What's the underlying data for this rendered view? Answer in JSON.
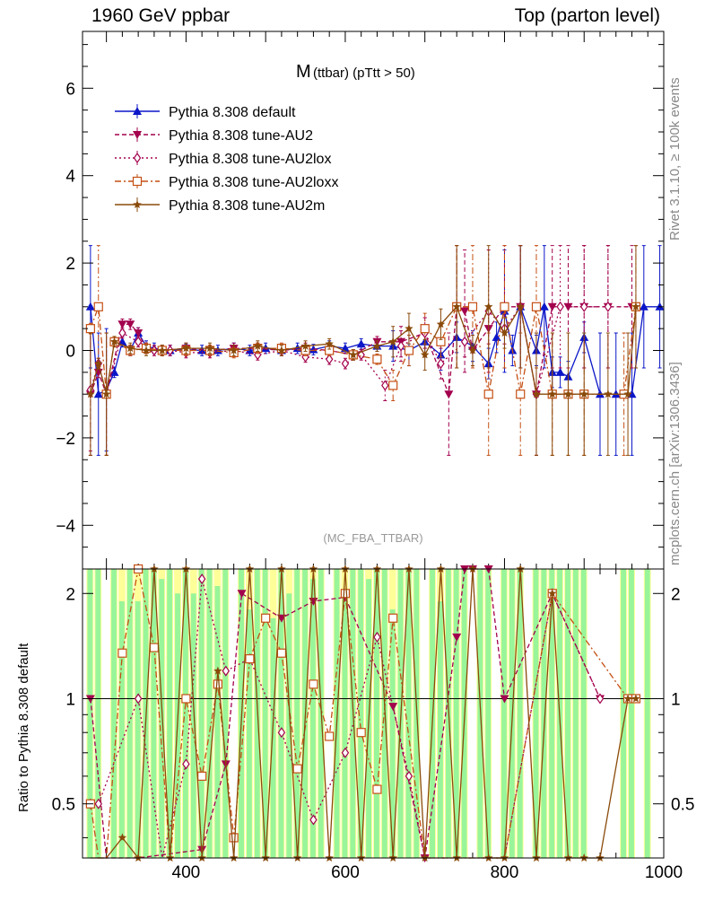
{
  "header": {
    "left": "1960 GeV ppbar",
    "right": "Top (parton level)"
  },
  "side_labels": {
    "rivet": "Rivet 3.1.10, ≥ 100k events",
    "mcplots": "mcplots.cern.ch [arXiv:1306.3436]"
  },
  "analysis_label": "(MC_FBA_TTBAR)",
  "chart_data": {
    "type": "line",
    "title_main": "M",
    "title_sub": "(ttbar) (pTtt > 50)",
    "xlabel": "",
    "ylabel_ratio": "Ratio to Pythia 8.308 default",
    "xlim": [
      270,
      1000
    ],
    "ylim_main": [
      -5.0,
      7.3
    ],
    "ylim_ratio": [
      0.35,
      2.35
    ],
    "x_ticks": [
      400,
      600,
      800,
      1000
    ],
    "y_ticks_main": [
      -4,
      -2,
      0,
      2,
      4,
      6
    ],
    "y_ticks_ratio": [
      0.5,
      1,
      2
    ],
    "series": [
      {
        "name": "Pythia 8.308 default",
        "color": "#0b16c8",
        "marker": "triangle-up",
        "dash": "",
        "x": [
          280,
          290,
          300,
          310,
          320,
          330,
          340,
          350,
          360,
          380,
          400,
          420,
          440,
          460,
          480,
          500,
          520,
          540,
          560,
          580,
          600,
          620,
          640,
          660,
          680,
          700,
          720,
          740,
          760,
          780,
          790,
          800,
          810,
          820,
          840,
          850,
          860,
          870,
          880,
          900,
          920,
          940,
          960,
          975,
          995
        ],
        "y": [
          1.0,
          -1.0,
          -0.9,
          -0.5,
          0.2,
          0.0,
          0.4,
          0.1,
          0.05,
          0.0,
          0.02,
          0.0,
          0.0,
          0.05,
          0.0,
          0.05,
          0.0,
          0.05,
          0.02,
          0.1,
          0.05,
          0.15,
          0.1,
          0.1,
          0.0,
          0.2,
          -0.1,
          0.3,
          0.1,
          -0.3,
          0.3,
          0.9,
          0.0,
          1.0,
          0.0,
          1.0,
          -0.5,
          -0.5,
          -0.6,
          0.3,
          -1.0,
          -1.0,
          -1.0,
          1.0,
          1.0
        ]
      },
      {
        "name": "Pythia 8.308 tune-AU2",
        "color": "#a3004d",
        "marker": "triangle-down",
        "dash": "5,3",
        "x": [
          280,
          290,
          300,
          320,
          330,
          340,
          350,
          370,
          400,
          430,
          460,
          490,
          520,
          550,
          580,
          610,
          640,
          670,
          700,
          730,
          740,
          750,
          760,
          780,
          800,
          820,
          840,
          860,
          880,
          900,
          930,
          960
        ],
        "y": [
          -1.0,
          -0.5,
          -1.0,
          0.6,
          0.6,
          0.4,
          0.05,
          0.0,
          0.05,
          0.0,
          0.05,
          0.05,
          0.0,
          0.05,
          0.0,
          -0.1,
          0.2,
          0.2,
          0.4,
          -1.0,
          1.0,
          0.9,
          0.0,
          0.5,
          1.0,
          1.0,
          -1.0,
          1.0,
          1.0,
          1.0,
          1.0,
          1.0
        ]
      },
      {
        "name": "Pythia 8.308 tune-AU2lox",
        "color": "#a3004d",
        "marker": "diamond-open",
        "dash": "2,3",
        "x": [
          280,
          290,
          300,
          320,
          340,
          360,
          380,
          400,
          430,
          460,
          490,
          520,
          550,
          580,
          600,
          620,
          650,
          670,
          700,
          720,
          750,
          780,
          800,
          820,
          840,
          870,
          900,
          930
        ],
        "y": [
          -0.9,
          -0.3,
          -1.0,
          0.4,
          0.2,
          0.0,
          0.0,
          -0.05,
          -0.05,
          0.0,
          -0.1,
          0.0,
          -0.15,
          -0.2,
          -0.3,
          -0.1,
          -0.8,
          0.1,
          0.4,
          -0.3,
          0.2,
          0.9,
          0.5,
          1.0,
          -1.0,
          1.0,
          1.0,
          1.0
        ]
      },
      {
        "name": "Pythia 8.308 tune-AU2loxx",
        "color": "#c44f13",
        "marker": "square-open",
        "dash": "7,3,2,3",
        "x": [
          280,
          290,
          300,
          310,
          330,
          350,
          370,
          400,
          430,
          460,
          490,
          520,
          550,
          580,
          610,
          640,
          660,
          680,
          700,
          720,
          740,
          760,
          780,
          800,
          820,
          840,
          860,
          880,
          900,
          950,
          965
        ],
        "y": [
          0.5,
          1.0,
          -1.0,
          0.2,
          0.0,
          0.05,
          0.0,
          0.0,
          0.0,
          -0.05,
          0.05,
          0.05,
          0.0,
          0.0,
          -0.1,
          -0.2,
          -0.8,
          0.0,
          0.5,
          0.2,
          1.0,
          1.0,
          -1.0,
          1.0,
          -1.0,
          1.0,
          -1.0,
          -1.0,
          -1.0,
          -1.0,
          1.0
        ]
      },
      {
        "name": "Pythia 8.308 tune-AU2m",
        "color": "#8a4a0a",
        "marker": "star",
        "dash": "",
        "x": [
          280,
          290,
          300,
          310,
          330,
          350,
          370,
          400,
          430,
          460,
          490,
          520,
          550,
          580,
          610,
          640,
          660,
          680,
          700,
          720,
          740,
          760,
          780,
          800,
          820,
          840,
          860,
          880,
          900,
          930,
          955,
          965
        ],
        "y": [
          -1.0,
          -0.3,
          -1.0,
          0.2,
          0.05,
          0.0,
          0.0,
          0.05,
          0.05,
          0.0,
          0.1,
          0.0,
          0.1,
          0.15,
          -0.1,
          0.1,
          0.2,
          0.5,
          -0.1,
          0.6,
          1.0,
          0.0,
          1.0,
          0.4,
          1.0,
          -1.0,
          -1.0,
          -1.0,
          -1.0,
          -1.0,
          -1.0,
          1.0
        ]
      }
    ],
    "ratio": {
      "reference_line": 1,
      "band_x": [
        280,
        290,
        300,
        310,
        320,
        330,
        340,
        350,
        360,
        370,
        380,
        390,
        400,
        410,
        420,
        430,
        440,
        450,
        460,
        470,
        480,
        490,
        500,
        510,
        520,
        530,
        540,
        550,
        560,
        570,
        580,
        590,
        600,
        610,
        620,
        630,
        640,
        650,
        660,
        670,
        680,
        690,
        700,
        710,
        720,
        730,
        740,
        750,
        760,
        770,
        780,
        790,
        800,
        810,
        820,
        830,
        840,
        850,
        860,
        870,
        880,
        890,
        900,
        910,
        920,
        930,
        940,
        950,
        960,
        970,
        980,
        990
      ],
      "band_green_lo": [
        0.35,
        0.35,
        0.35,
        0.35,
        0.35,
        0.35,
        0.35,
        0.35,
        0.35,
        0.35,
        0.35,
        0.35,
        0.35,
        0.35,
        0.35,
        0.35,
        0.35,
        0.35,
        0.35,
        0.35,
        0.35,
        0.35,
        0.35,
        0.35,
        0.35,
        0.35,
        0.35,
        0.35,
        0.35,
        0.35,
        0.35,
        0.35,
        0.35,
        0.35,
        0.35,
        0.35,
        0.35,
        0.35,
        0.35,
        0.35,
        0.35,
        0.35,
        0.35,
        0.35,
        0.35,
        0.35,
        0.35,
        0.35,
        0.35,
        0.35,
        0.35,
        0.35,
        0.35,
        0.35,
        0.35,
        0.35,
        0.35,
        0.35,
        0.35,
        0.35,
        0.35,
        0.35,
        0.35,
        0.35,
        0.35,
        0.35,
        0.35,
        0.35,
        0.35,
        0.35,
        0.35,
        0.35
      ],
      "band_green_hi": [
        2.35,
        2.35,
        0,
        2.35,
        1.9,
        2.35,
        1.9,
        2.35,
        2.35,
        2.2,
        2.35,
        2.0,
        2.35,
        2.0,
        2.35,
        2.35,
        2.1,
        2.35,
        0,
        2.35,
        1.8,
        2.35,
        2.35,
        1.7,
        2.35,
        2.0,
        2.35,
        2.35,
        2.2,
        2.35,
        0,
        2.35,
        2.0,
        2.35,
        2.35,
        2.2,
        2.35,
        2.35,
        1.8,
        2.35,
        2.35,
        2.35,
        0,
        2.35,
        1.9,
        2.35,
        2.35,
        2.35,
        0,
        2.35,
        2.35,
        0,
        2.35,
        2.35,
        2.35,
        0,
        2.35,
        2.35,
        2.35,
        2.35,
        2.35,
        2.35,
        2.35,
        0,
        0,
        0,
        0,
        2.35,
        2.35,
        0,
        2.35,
        0
      ],
      "band_yellow_hi": [
        2.35,
        2.35,
        0,
        2.35,
        2.35,
        2.35,
        2.35,
        2.35,
        2.35,
        2.35,
        2.35,
        2.35,
        2.35,
        2.35,
        2.35,
        2.35,
        2.35,
        2.35,
        0,
        2.35,
        2.35,
        2.35,
        2.35,
        2.35,
        2.35,
        2.35,
        2.35,
        2.35,
        2.35,
        2.35,
        0,
        2.35,
        2.35,
        2.35,
        2.35,
        2.35,
        2.35,
        2.35,
        2.35,
        2.35,
        2.35,
        2.35,
        0,
        2.35,
        2.35,
        2.35,
        2.35,
        2.35,
        0,
        2.35,
        2.35,
        0,
        2.35,
        2.35,
        2.35,
        0,
        2.35,
        2.35,
        2.35,
        2.35,
        2.35,
        2.35,
        2.35,
        0,
        0,
        0,
        0,
        2.35,
        2.35,
        0,
        2.35,
        0
      ],
      "series": [
        {
          "color": "#a3004d",
          "marker": "triangle-down",
          "dash": "5,3",
          "x": [
            280,
            300,
            340,
            420,
            450,
            470,
            520,
            560,
            600,
            660,
            700,
            740,
            750,
            760,
            780,
            800,
            860,
            920
          ],
          "y": [
            1.0,
            0.2,
            0.2,
            0.37,
            0.65,
            2.0,
            1.7,
            1.9,
            1.95,
            0.95,
            0.35,
            1.5,
            2.35,
            2.35,
            2.35,
            1.0,
            2.0,
            1.0
          ]
        },
        {
          "color": "#a3004d",
          "marker": "diamond-open",
          "dash": "2,3",
          "x": [
            280,
            290,
            340,
            370,
            400,
            420,
            450,
            480,
            520,
            560,
            600,
            640,
            680,
            700,
            720,
            760,
            800,
            860,
            920
          ],
          "y": [
            0.5,
            0.5,
            1.0,
            0.3,
            0.65,
            2.2,
            1.2,
            1.3,
            0.8,
            0.45,
            0.7,
            1.5,
            0.6,
            0.2,
            0.2,
            0.2,
            0.2,
            2.0,
            1.0
          ]
        },
        {
          "color": "#c44f13",
          "marker": "square-open",
          "dash": "7,3,2,3",
          "x": [
            280,
            290,
            300,
            320,
            340,
            360,
            380,
            400,
            420,
            440,
            460,
            480,
            500,
            520,
            540,
            560,
            580,
            600,
            620,
            640,
            660,
            700,
            760,
            780,
            800,
            860,
            955,
            965
          ],
          "y": [
            0.5,
            0.2,
            0.2,
            1.35,
            2.35,
            1.4,
            0.3,
            1.0,
            0.6,
            1.1,
            0.4,
            1.3,
            1.7,
            1.35,
            0.63,
            1.1,
            0.78,
            2.0,
            0.8,
            0.55,
            1.7,
            0.2,
            0.2,
            0.2,
            0.2,
            2.0,
            1.0,
            1.0
          ]
        },
        {
          "color": "#8a4a0a",
          "marker": "star",
          "dash": "",
          "x": [
            280,
            300,
            320,
            340,
            360,
            380,
            400,
            420,
            440,
            460,
            480,
            500,
            520,
            540,
            560,
            580,
            600,
            620,
            640,
            660,
            680,
            700,
            720,
            740,
            760,
            780,
            800,
            820,
            840,
            860,
            880,
            900,
            920,
            955,
            965
          ],
          "y": [
            0.3,
            0.3,
            0.4,
            0.35,
            2.35,
            0.35,
            2.35,
            0.35,
            1.2,
            0.35,
            2.35,
            0.35,
            2.35,
            0.35,
            2.35,
            0.35,
            2.35,
            0.35,
            2.35,
            0.35,
            2.35,
            0.35,
            2.35,
            0.35,
            2.35,
            0.35,
            0.35,
            2.35,
            0.35,
            2.0,
            0.35,
            0.35,
            0.35,
            1.0,
            1.0
          ]
        }
      ]
    }
  }
}
